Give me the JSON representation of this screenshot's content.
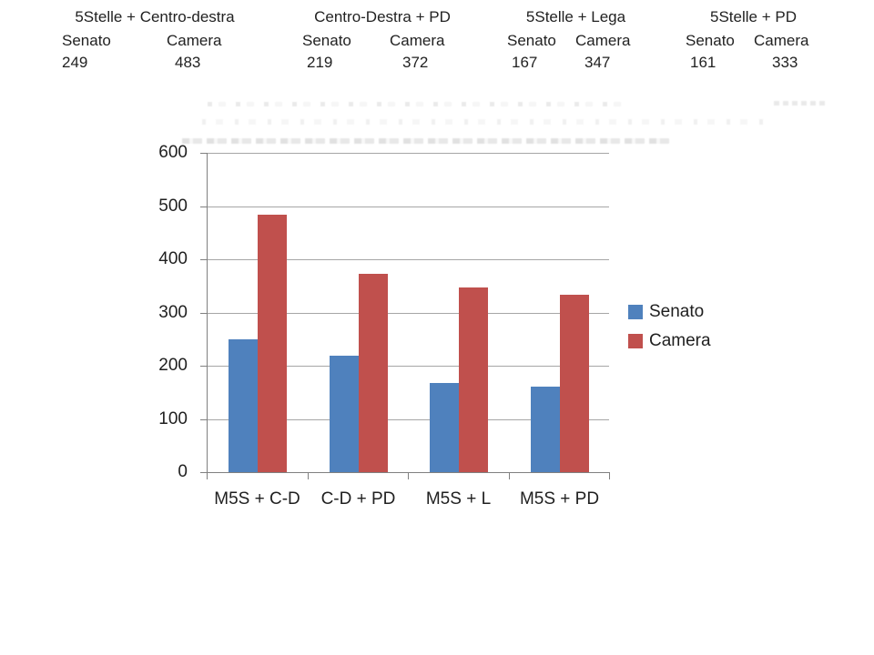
{
  "header": {
    "blocks": [
      {
        "title": "5Stelle + Centro-destra",
        "columns": [
          {
            "label": "Senato",
            "value": "249"
          },
          {
            "label": "Camera",
            "value": "483"
          }
        ]
      },
      {
        "title": "Centro-Destra + PD",
        "columns": [
          {
            "label": "Senato",
            "value": "219"
          },
          {
            "label": "Camera",
            "value": "372"
          }
        ]
      },
      {
        "title": "5Stelle + Lega",
        "columns": [
          {
            "label": "Senato",
            "value": "167"
          },
          {
            "label": "Camera",
            "value": "347"
          }
        ]
      },
      {
        "title": "5Stelle + PD",
        "columns": [
          {
            "label": "Senato",
            "value": "161"
          },
          {
            "label": "Camera",
            "value": "333"
          }
        ]
      }
    ]
  },
  "chart_data": {
    "type": "bar",
    "title": "",
    "xlabel": "",
    "ylabel": "",
    "categories": [
      "M5S + C-D",
      "C-D + PD",
      "M5S + L",
      "M5S + PD"
    ],
    "series": [
      {
        "name": "Senato",
        "color": "#4f81bd",
        "values": [
          249,
          219,
          167,
          161
        ]
      },
      {
        "name": "Camera",
        "color": "#c0504d",
        "values": [
          483,
          372,
          347,
          333
        ]
      }
    ],
    "ylim": [
      0,
      600
    ],
    "ytick_interval": 100,
    "grid": true,
    "legend_position": "right"
  },
  "colors": {
    "senato_blue": "#4f81bd",
    "camera_red": "#c0504d",
    "gridline_gray": "#a6a6a6",
    "axis_gray": "#808080",
    "text_dark": "#1f1f1f"
  }
}
